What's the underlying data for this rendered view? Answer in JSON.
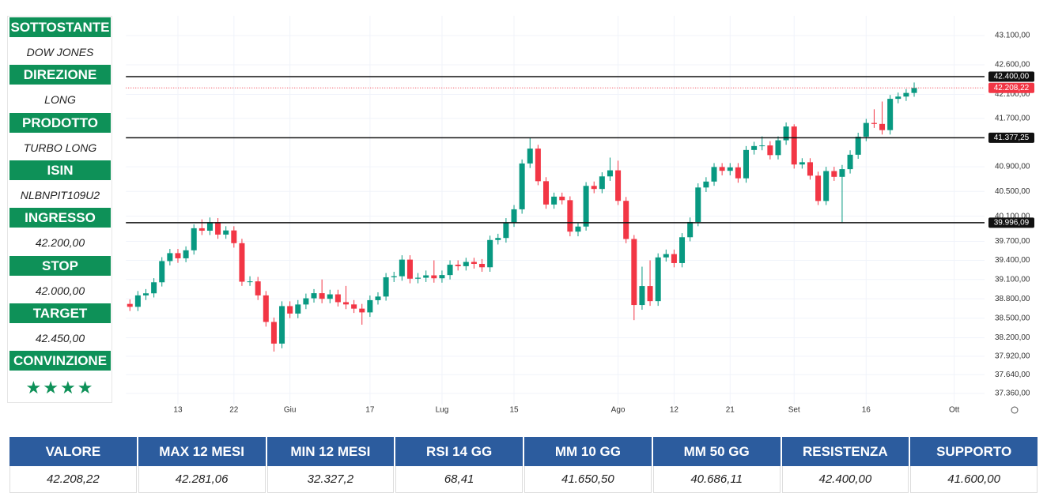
{
  "sidebar": [
    {
      "label": "SOTTOSTANTE",
      "value": "DOW JONES"
    },
    {
      "label": "DIREZIONE",
      "value": "LONG"
    },
    {
      "label": "PRODOTTO",
      "value": "TURBO LONG"
    },
    {
      "label": "ISIN",
      "value": "NLBNPIT109U2"
    },
    {
      "label": "INGRESSO",
      "value": "42.200,00"
    },
    {
      "label": "STOP",
      "value": "42.000,00"
    },
    {
      "label": "TARGET",
      "value": "42.450,00"
    },
    {
      "label": "CONVINZIONE",
      "value": "★★★★"
    }
  ],
  "table": {
    "headers": [
      "VALORE",
      "MAX 12 MESI",
      "MIN 12 MESI",
      "RSI 14 GG",
      "MM 10 GG",
      "MM 50 GG",
      "RESISTENZA",
      "SUPPORTO"
    ],
    "values": [
      "42.208,22",
      "42.281,06",
      "32.327,2",
      "68,41",
      "41.650,50",
      "40.686,11",
      "42.400,00",
      "41.600,00"
    ]
  },
  "chart_data": {
    "type": "candlestick",
    "log": true,
    "grid": true,
    "up_color": "#089981",
    "down_color": "#f23645",
    "categories": [
      null,
      null,
      null,
      null,
      null,
      null,
      "13",
      null,
      null,
      null,
      null,
      null,
      null,
      "22",
      null,
      null,
      null,
      null,
      null,
      null,
      "Giu",
      null,
      null,
      null,
      null,
      null,
      null,
      null,
      null,
      null,
      "17",
      null,
      null,
      null,
      null,
      null,
      null,
      null,
      null,
      "Lug",
      null,
      null,
      null,
      null,
      null,
      null,
      null,
      null,
      "15",
      null,
      null,
      null,
      null,
      null,
      null,
      null,
      null,
      null,
      null,
      null,
      null,
      "Ago",
      null,
      null,
      null,
      null,
      null,
      null,
      "12",
      null,
      null,
      null,
      null,
      null,
      null,
      "21",
      null,
      null,
      null,
      null,
      null,
      null,
      null,
      "Set",
      null,
      null,
      null,
      null,
      null,
      null,
      null,
      null,
      "16",
      null,
      null,
      null,
      null,
      null,
      null,
      null,
      null,
      null,
      null,
      "Ott"
    ],
    "open": [
      38720,
      38675,
      38852,
      38884,
      39056,
      39388,
      39513,
      39432,
      39558,
      39908,
      39869,
      40004,
      39807,
      39873,
      39671,
      39065,
      39070,
      38852,
      38442,
      38111,
      38686,
      38571,
      38711,
      38807,
      38886,
      38799,
      38868,
      38747,
      38712,
      38647,
      38589,
      38778,
      38834,
      39134,
      39150,
      39411,
      39112,
      39127,
      39164,
      39118,
      39169,
      39331,
      39308,
      39375,
      39344,
      39291,
      39721,
      39753,
      40000,
      40211,
      40954,
      41198,
      40665,
      40288,
      40415,
      40358,
      39854,
      39935,
      40589,
      40539,
      40743,
      40842,
      40347,
      39737,
      38703,
      38997,
      38763,
      39446,
      39498,
      39357,
      39765,
      40008,
      40563,
      40659,
      40896,
      40834,
      40890,
      40712,
      41175,
      41240,
      41250,
      41091,
      41335,
      41563,
      40937,
      40974,
      40755,
      40345,
      40830,
      40736,
      40861,
      41097,
      41394,
      41622,
      41606,
      41503,
      42025,
      42063,
      42124,
      null,
      null,
      null,
      null,
      null
    ],
    "high": [
      38790,
      38920,
      38950,
      39120,
      39450,
      39580,
      39580,
      39620,
      39970,
      40050,
      40080,
      40070,
      39940,
      39940,
      39740,
      39150,
      39140,
      38920,
      38510,
      38760,
      38760,
      38780,
      38880,
      38950,
      39100,
      38940,
      38940,
      39000,
      38780,
      38720,
      38850,
      38900,
      39200,
      39220,
      39480,
      39480,
      39200,
      39240,
      39400,
      39240,
      39400,
      39400,
      39440,
      39440,
      39420,
      39790,
      39820,
      40070,
      40280,
      41020,
      41370,
      41260,
      40730,
      40480,
      40480,
      40420,
      40000,
      40650,
      40660,
      40810,
      41050,
      41000,
      40410,
      39800,
      39300,
      39400,
      39510,
      39570,
      39570,
      39830,
      40080,
      40630,
      40730,
      40960,
      40960,
      40960,
      40960,
      41240,
      41310,
      41400,
      41320,
      41400,
      41630,
      41600,
      41040,
      41040,
      40820,
      40900,
      40900,
      40930,
      41170,
      41460,
      41690,
      41850,
      41980,
      42090,
      42130,
      42190,
      42300,
      null,
      null,
      null,
      null,
      null
    ],
    "low": [
      38610,
      38610,
      38780,
      38820,
      38990,
      39320,
      39360,
      39370,
      39490,
      39800,
      39800,
      39740,
      39740,
      39600,
      39000,
      39000,
      38780,
      38370,
      37990,
      38040,
      38500,
      38500,
      38640,
      38740,
      38730,
      38730,
      38680,
      38640,
      38580,
      38400,
      38520,
      38710,
      38770,
      39060,
      39080,
      39040,
      39040,
      39060,
      39050,
      39050,
      39100,
      39240,
      39240,
      39270,
      39220,
      39220,
      39650,
      39680,
      39930,
      40140,
      40880,
      40600,
      40220,
      40220,
      40290,
      39780,
      39780,
      39870,
      40470,
      40470,
      40670,
      40280,
      39670,
      38470,
      38630,
      38690,
      38690,
      39380,
      39290,
      39290,
      39700,
      39940,
      40490,
      40590,
      40760,
      40760,
      40640,
      40640,
      41100,
      41170,
      41020,
      41020,
      41260,
      40870,
      40870,
      40690,
      40280,
      40280,
      40670,
      39990,
      40790,
      41030,
      41320,
      41540,
      41430,
      41430,
      41950,
      41990,
      42060,
      null,
      null,
      null,
      null,
      null
    ],
    "close": [
      38675,
      38852,
      38884,
      39056,
      39388,
      39513,
      39432,
      39558,
      39908,
      39869,
      40004,
      39807,
      39873,
      39671,
      39065,
      39070,
      38852,
      38442,
      38111,
      38686,
      38571,
      38711,
      38807,
      38886,
      38799,
      38868,
      38747,
      38712,
      38647,
      38589,
      38778,
      38834,
      39134,
      39150,
      39411,
      39112,
      39127,
      39164,
      39118,
      39169,
      39331,
      39308,
      39375,
      39344,
      39291,
      39721,
      39753,
      40000,
      40211,
      40954,
      41198,
      40665,
      40288,
      40415,
      40358,
      39854,
      39935,
      40589,
      40539,
      40743,
      40842,
      40347,
      39737,
      38703,
      38997,
      38763,
      39446,
      39498,
      39357,
      39765,
      40008,
      40563,
      40659,
      40896,
      40834,
      40890,
      40712,
      41175,
      41240,
      41250,
      41091,
      41335,
      41563,
      40937,
      40974,
      40755,
      40345,
      40830,
      40736,
      40861,
      41097,
      41394,
      41622,
      41606,
      41503,
      42025,
      42063,
      42124,
      42208,
      null,
      null,
      null,
      null,
      null
    ],
    "ylim": [
      37195,
      43442
    ],
    "yticks": [
      {
        "value": 43100,
        "label": "43.100,00"
      },
      {
        "value": 42600,
        "label": "42.600,00"
      },
      {
        "value": 42100,
        "label": "42.100,00"
      },
      {
        "value": 41700,
        "label": "41.700,00"
      },
      {
        "value": 40900,
        "label": "40.900,00"
      },
      {
        "value": 40500,
        "label": "40.500,00"
      },
      {
        "value": 40100,
        "label": "40.100,00"
      },
      {
        "value": 39700,
        "label": "39.700,00"
      },
      {
        "value": 39400,
        "label": "39.400,00"
      },
      {
        "value": 39100,
        "label": "39.100,00"
      },
      {
        "value": 38800,
        "label": "38.800,00"
      },
      {
        "value": 38500,
        "label": "38.500,00"
      },
      {
        "value": 38200,
        "label": "38.200,00"
      },
      {
        "value": 37920,
        "label": "37.920,00"
      },
      {
        "value": 37640,
        "label": "37.640,00"
      },
      {
        "value": 37360,
        "label": "37.360,00"
      }
    ],
    "levels": [
      {
        "value": 42400,
        "label": "42.400,00"
      },
      {
        "value": 41377.25,
        "label": "41.377,25"
      },
      {
        "value": 39996.09,
        "label": "39.996,09"
      }
    ],
    "last_price": {
      "value": 42208.22,
      "label": "42.208,22",
      "color": "#f23645"
    }
  }
}
